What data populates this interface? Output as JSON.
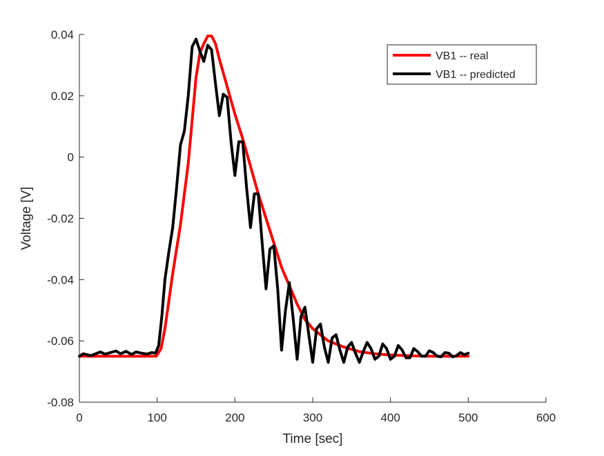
{
  "chart_data": {
    "type": "line",
    "xlabel": "Time [sec]",
    "ylabel": "Voltage [V]",
    "xlim": [
      0,
      600
    ],
    "ylim": [
      -0.08,
      0.04
    ],
    "xticks": [
      0,
      100,
      200,
      300,
      400,
      500,
      600
    ],
    "yticks": [
      -0.08,
      -0.06,
      -0.04,
      -0.02,
      0,
      0.02,
      0.04
    ],
    "xtick_labels": [
      "0",
      "100",
      "200",
      "300",
      "400",
      "500",
      "600"
    ],
    "ytick_labels": [
      "-0.08",
      "-0.06",
      "-0.04",
      "-0.02",
      "0",
      "0.02",
      "0.04"
    ],
    "grid": false,
    "legend_position": "top-right",
    "series": [
      {
        "name": "VB1 -- real",
        "color": "#ff0000",
        "x": [
          0,
          50,
          99,
          105,
          110,
          115,
          120,
          125,
          130,
          135,
          140,
          145,
          150,
          155,
          160,
          165,
          170,
          175,
          180,
          190,
          200,
          210,
          220,
          230,
          240,
          250,
          260,
          270,
          280,
          290,
          300,
          320,
          340,
          360,
          380,
          400,
          420,
          450,
          500
        ],
        "y": [
          -0.065,
          -0.065,
          -0.065,
          -0.0625,
          -0.056,
          -0.047,
          -0.038,
          -0.03,
          -0.022,
          -0.012,
          -0.002,
          0.012,
          0.026,
          0.034,
          0.037,
          0.0395,
          0.0395,
          0.037,
          0.032,
          0.023,
          0.014,
          0.006,
          -0.003,
          -0.012,
          -0.02,
          -0.028,
          -0.036,
          -0.042,
          -0.048,
          -0.053,
          -0.056,
          -0.06,
          -0.062,
          -0.0635,
          -0.0642,
          -0.0646,
          -0.0648,
          -0.065,
          -0.065
        ]
      },
      {
        "name": "VB1 -- predicted",
        "color": "#000000",
        "x": [
          0,
          5,
          10,
          15,
          20,
          27,
          33,
          40,
          47,
          53,
          60,
          67,
          73,
          80,
          87,
          93,
          98,
          102,
          106,
          110,
          115,
          120,
          125,
          130,
          135,
          140,
          145,
          150,
          155,
          160,
          165,
          170,
          175,
          180,
          185,
          190,
          195,
          200,
          205,
          210,
          215,
          220,
          225,
          230,
          235,
          240,
          245,
          250,
          255,
          260,
          265,
          270,
          275,
          280,
          285,
          290,
          295,
          300,
          305,
          310,
          315,
          320,
          325,
          330,
          335,
          340,
          345,
          350,
          355,
          360,
          365,
          370,
          375,
          380,
          385,
          390,
          395,
          400,
          405,
          410,
          415,
          420,
          425,
          430,
          435,
          440,
          445,
          450,
          455,
          460,
          465,
          470,
          475,
          480,
          485,
          490,
          495,
          500
        ],
        "y": [
          -0.065,
          -0.0642,
          -0.0645,
          -0.0648,
          -0.0643,
          -0.0636,
          -0.0643,
          -0.0638,
          -0.0633,
          -0.0642,
          -0.0634,
          -0.0644,
          -0.0636,
          -0.064,
          -0.0643,
          -0.0638,
          -0.064,
          -0.0615,
          -0.052,
          -0.04,
          -0.031,
          -0.023,
          -0.01,
          0.004,
          0.0085,
          0.02,
          0.036,
          0.0385,
          0.0345,
          0.0312,
          0.0365,
          0.035,
          0.024,
          0.0135,
          0.0205,
          0.0195,
          0.005,
          -0.006,
          0.005,
          0.005,
          -0.01,
          -0.023,
          -0.012,
          -0.012,
          -0.028,
          -0.043,
          -0.03,
          -0.029,
          -0.043,
          -0.063,
          -0.05,
          -0.041,
          -0.053,
          -0.066,
          -0.052,
          -0.049,
          -0.058,
          -0.067,
          -0.056,
          -0.0545,
          -0.062,
          -0.067,
          -0.059,
          -0.058,
          -0.063,
          -0.067,
          -0.062,
          -0.0605,
          -0.064,
          -0.067,
          -0.0635,
          -0.0605,
          -0.0625,
          -0.066,
          -0.065,
          -0.061,
          -0.0625,
          -0.066,
          -0.065,
          -0.0615,
          -0.063,
          -0.0655,
          -0.0655,
          -0.0625,
          -0.0635,
          -0.065,
          -0.065,
          -0.0632,
          -0.0638,
          -0.065,
          -0.0652,
          -0.0638,
          -0.064,
          -0.0652,
          -0.0648,
          -0.0638,
          -0.0645,
          -0.064
        ]
      }
    ]
  }
}
